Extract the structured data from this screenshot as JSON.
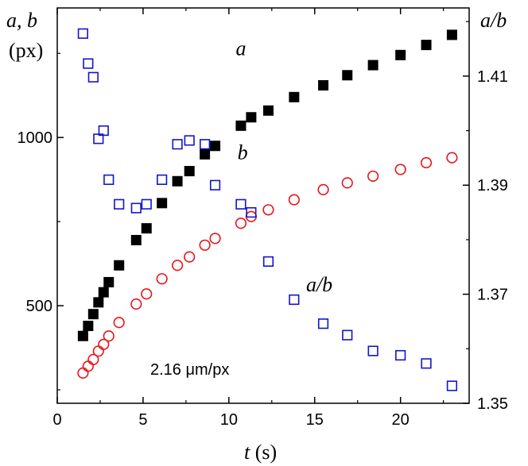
{
  "chart_data": {
    "type": "scatter",
    "x_axis": {
      "label_var": "t",
      "label_unit": " (s)",
      "range": [
        0,
        24
      ],
      "ticks": [
        0,
        5,
        10,
        15,
        20
      ],
      "tick_labels": [
        "0",
        "5",
        "10",
        "15",
        "20"
      ]
    },
    "y_axis_left": {
      "label_var": "a, b",
      "label_unit": "(px)",
      "range": [
        210,
        1385
      ],
      "ticks": [
        500,
        1000
      ],
      "tick_labels": [
        "500",
        "1000"
      ]
    },
    "y_axis_right": {
      "label": "a/b",
      "range": [
        1.35,
        1.4225
      ],
      "ticks": [
        1.35,
        1.37,
        1.39,
        1.41
      ],
      "tick_labels": [
        "1.35",
        "1.37",
        "1.39",
        "1.41"
      ]
    },
    "annotation": "2.16 μm/px",
    "series": [
      {
        "name": "a",
        "axis": "left",
        "marker": "filled-square",
        "color": "#000000",
        "label_pos": [
          10.4,
          1245
        ],
        "x": [
          1.5,
          1.8,
          2.1,
          2.4,
          2.7,
          3.0,
          3.6,
          4.6,
          5.2,
          6.1,
          7.0,
          7.7,
          8.6,
          9.2,
          10.7,
          11.3,
          12.3,
          13.8,
          15.5,
          16.9,
          18.4,
          20.0,
          21.5,
          23.0
        ],
        "values": [
          410,
          440,
          475,
          510,
          540,
          570,
          620,
          695,
          730,
          805,
          870,
          900,
          950,
          975,
          1035,
          1060,
          1080,
          1120,
          1155,
          1185,
          1215,
          1245,
          1275,
          1305
        ]
      },
      {
        "name": "b",
        "axis": "left",
        "marker": "open-circle",
        "color": "#e8141a",
        "label_pos": [
          10.5,
          935
        ],
        "x": [
          1.5,
          1.8,
          2.1,
          2.4,
          2.7,
          3.0,
          3.6,
          4.6,
          5.2,
          6.1,
          7.0,
          7.7,
          8.6,
          9.2,
          10.7,
          11.3,
          12.3,
          13.8,
          15.5,
          16.9,
          18.4,
          20.0,
          21.5,
          23.0
        ],
        "values": [
          300,
          320,
          340,
          365,
          385,
          410,
          450,
          505,
          535,
          580,
          620,
          645,
          680,
          700,
          745,
          765,
          785,
          815,
          845,
          865,
          885,
          905,
          925,
          940
        ]
      },
      {
        "name": "a/b",
        "axis": "right",
        "marker": "open-square",
        "color": "#1414cc",
        "label_pos": [
          14.5,
          1.3705
        ],
        "x": [
          1.5,
          1.8,
          2.1,
          2.4,
          2.7,
          3.0,
          3.6,
          4.6,
          5.2,
          6.1,
          7.0,
          7.7,
          8.6,
          9.2,
          10.7,
          11.3,
          12.3,
          13.8,
          15.5,
          16.9,
          18.4,
          20.0,
          21.5,
          23.0
        ],
        "values": [
          1.4178,
          1.4123,
          1.4098,
          1.3985,
          1.4,
          1.391,
          1.3865,
          1.3858,
          1.3865,
          1.391,
          1.3975,
          1.3982,
          1.3975,
          1.39,
          1.3865,
          1.385,
          1.376,
          1.369,
          1.3646,
          1.3625,
          1.3596,
          1.3588,
          1.3573,
          1.3532
        ]
      }
    ]
  }
}
